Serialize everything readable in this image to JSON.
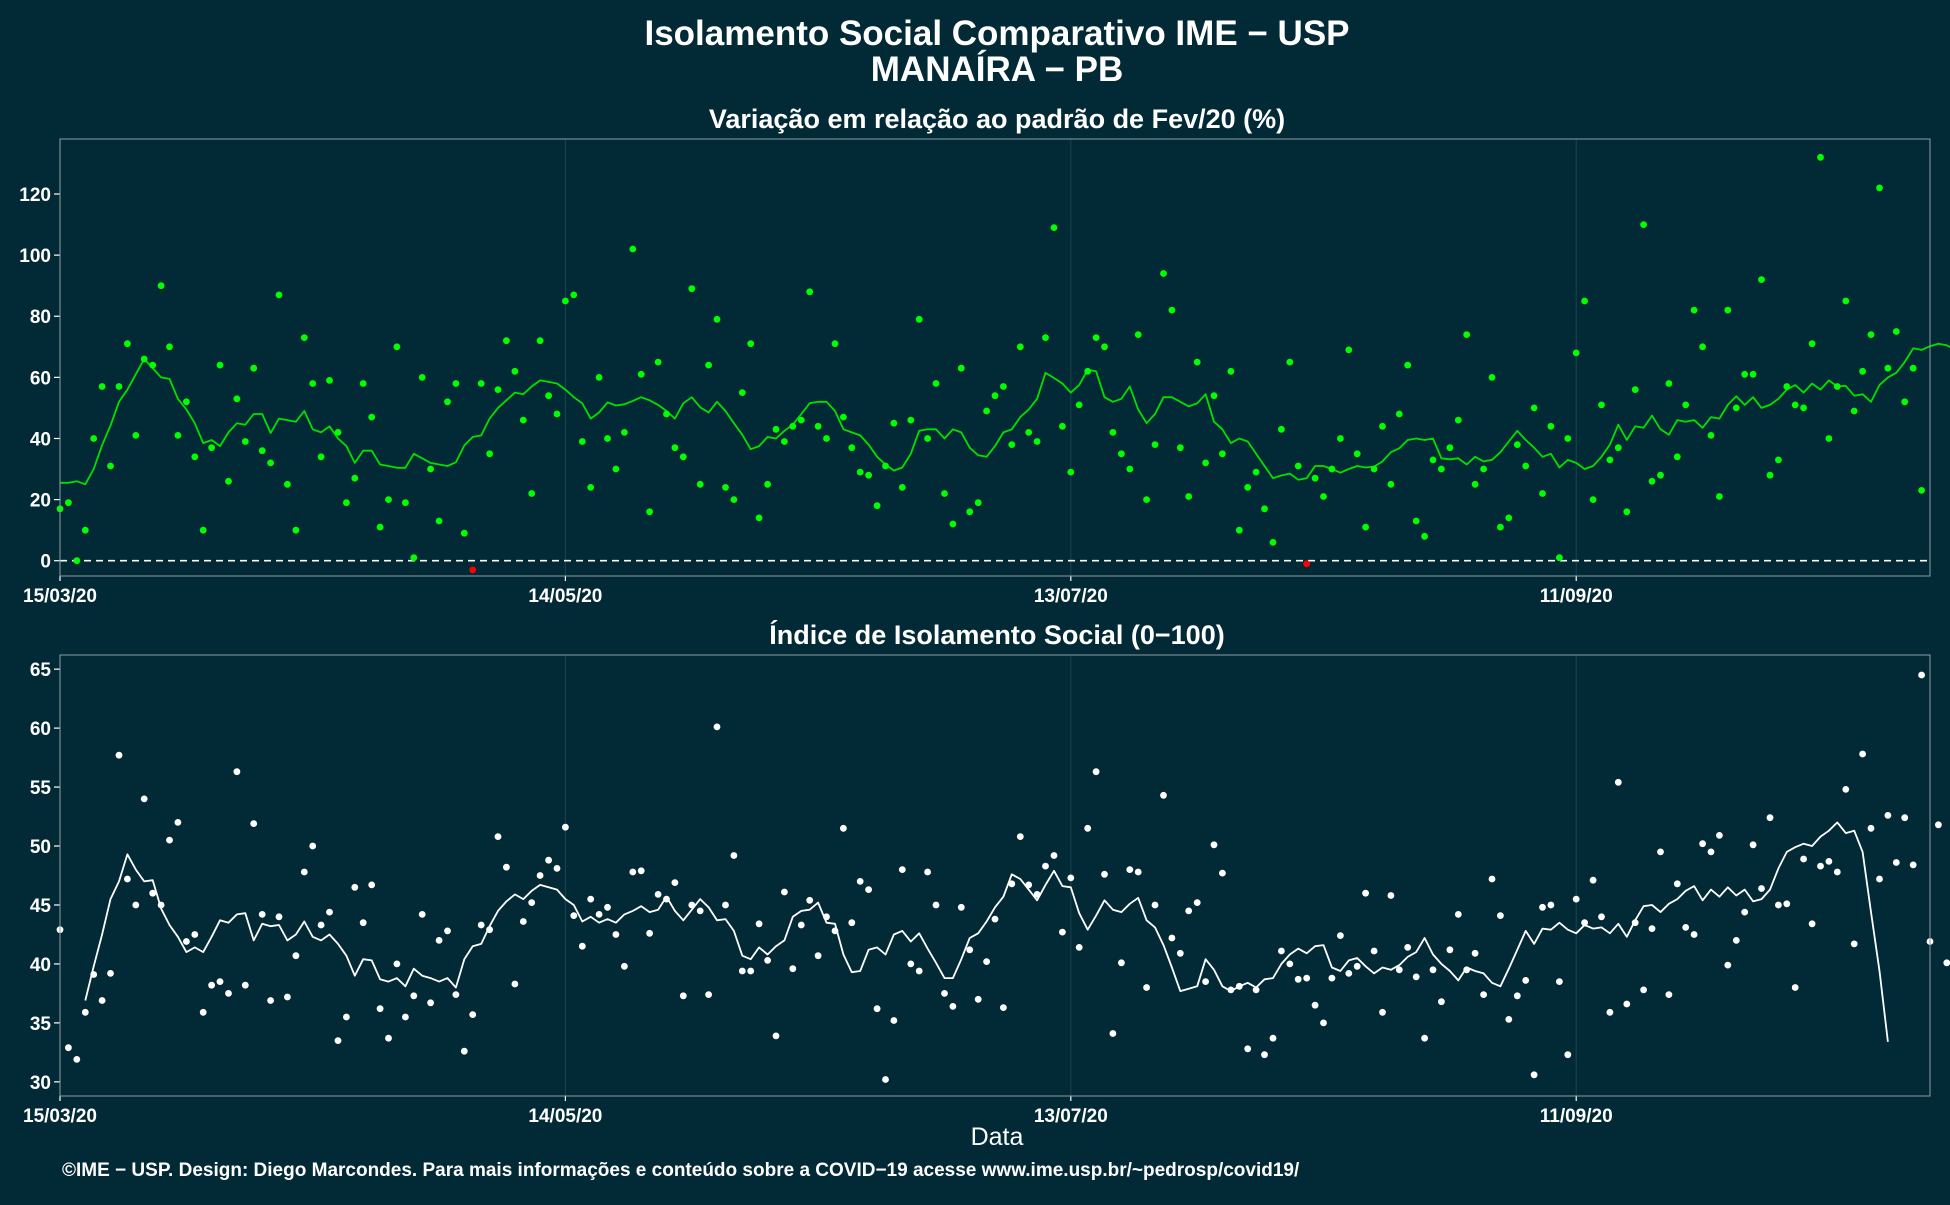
{
  "title_line1": "Isolamento Social Comparativo IME − USP",
  "title_line2": "MANAÍRA − PB",
  "credit": "©IME − USP. Design: Diego Marcondes. Para mais informações e conteúdo sobre a COVID−19 acesse www.ime.usp.br/~pedrosp/covid19/",
  "colors": {
    "background": "#022a36",
    "panel_border": "#8e9ca1",
    "grid": "#16404c",
    "positive_points": "#00ff00",
    "negative_points": "#ff0000",
    "variation_line": "#00e000",
    "index_points": "#ffffff",
    "index_line": "#ffffff"
  },
  "chart_data": [
    {
      "type": "scatter",
      "title": "Variação em relação ao padrão de Fev/20 (%)",
      "xlabel": "",
      "ylabel": "",
      "x_start": "2020-03-15",
      "x_end": "2020-10-23",
      "x_ticks": [
        "15/03/20",
        "14/05/20",
        "13/07/20",
        "11/09/20"
      ],
      "y_ticks": [
        0,
        20,
        40,
        60,
        80,
        100,
        120
      ],
      "ylim": [
        -5,
        138
      ],
      "reference_line": 0,
      "grid": true,
      "legend": "none",
      "points": [
        17,
        19,
        0,
        10,
        40,
        57,
        31,
        57,
        71,
        41,
        66,
        64,
        90,
        70,
        41,
        52,
        34,
        10,
        37,
        64,
        26,
        53,
        39,
        63,
        36,
        32,
        87,
        25,
        10,
        73,
        58,
        34,
        59,
        42,
        19,
        27,
        58,
        47,
        11,
        20,
        70,
        19,
        1,
        60,
        30,
        13,
        52,
        58,
        9,
        -3,
        58,
        35,
        56,
        72,
        62,
        46,
        22,
        72,
        54,
        48,
        85,
        87,
        39,
        24,
        60,
        40,
        30,
        42,
        102,
        61,
        16,
        65,
        48,
        37,
        34,
        89,
        25,
        64,
        79,
        24,
        20,
        55,
        71,
        14,
        25,
        43,
        39,
        44,
        46,
        88,
        44,
        40,
        71,
        47,
        37,
        29,
        28,
        18,
        31,
        45,
        24,
        46,
        79,
        40,
        58,
        22,
        12,
        63,
        16,
        19,
        49,
        54,
        57,
        38,
        70,
        42,
        39,
        73,
        109,
        44,
        29,
        51,
        62,
        73,
        70,
        42,
        35,
        30,
        74,
        20,
        38,
        94,
        82,
        37,
        21,
        65,
        32,
        54,
        35,
        62,
        10,
        24,
        29,
        17,
        6,
        43,
        65,
        31,
        -1,
        27,
        21,
        30,
        40,
        69,
        35,
        11,
        30,
        44,
        25,
        48,
        64,
        13,
        8,
        33,
        30,
        37,
        46,
        74,
        25,
        30,
        60,
        11,
        14,
        38,
        31,
        50,
        22,
        44,
        1,
        40,
        68,
        85,
        20,
        51,
        33,
        37,
        16,
        56,
        110,
        26,
        28,
        58,
        34,
        51,
        82,
        70,
        41,
        21,
        82,
        50,
        61,
        61,
        92,
        28,
        33,
        57,
        51,
        50,
        71,
        132,
        40,
        57,
        85,
        49,
        62,
        74,
        122,
        63,
        75,
        52,
        63,
        23
      ],
      "moving_average": [
        25.5,
        25.5,
        26,
        25,
        30,
        37.8,
        44.2,
        52,
        56,
        61,
        66,
        63,
        60,
        59.5,
        53,
        49.5,
        45,
        38.5,
        39.5,
        37.5,
        42,
        45,
        44.5,
        48,
        48,
        41.8,
        46.5,
        46,
        45.5,
        49,
        43,
        42,
        44,
        40,
        37.5,
        32,
        36,
        36,
        31.5,
        31,
        30.4,
        30.4,
        35,
        33.5,
        32,
        31.5,
        31,
        32.2,
        37.7,
        40.5,
        41,
        46.5,
        50,
        52.5,
        55,
        54.5,
        57,
        59,
        58.5,
        58,
        56,
        53.5,
        51.5,
        46.5,
        48.5,
        51.8,
        50.8,
        51.2,
        52.3,
        53.5,
        52.5,
        51,
        49,
        46.5,
        51.5,
        53.5,
        50.2,
        48.5,
        52,
        49,
        45,
        41.2,
        36.5,
        37.5,
        40.5,
        40,
        42.5,
        44.5,
        48,
        51.5,
        52,
        52,
        49,
        43,
        42,
        41,
        38,
        34,
        31.5,
        29.5,
        30.5,
        35,
        42.5,
        43,
        43,
        40,
        43,
        42,
        37,
        34.5,
        34,
        37.5,
        42,
        43,
        47,
        49.5,
        53,
        61.5,
        59.8,
        58,
        55,
        57.5,
        62.5,
        62,
        53.5,
        52,
        53,
        57,
        49.5,
        45,
        48,
        53.5,
        53.5,
        52,
        50.5,
        51.5,
        54.5,
        45.5,
        43,
        38.5,
        40,
        39,
        35,
        31,
        27,
        27.9,
        28.5,
        26.5,
        27,
        31,
        31,
        30,
        28.8,
        30,
        31,
        30.5,
        30.8,
        32.5,
        35.5,
        36.8,
        39.5,
        40,
        39.5,
        40,
        33.5,
        33.2,
        33.5,
        31.5,
        34,
        32.5,
        33,
        35.5,
        39,
        42.5,
        39.5,
        37,
        34,
        35,
        30.5,
        33,
        32,
        30,
        31,
        34,
        38,
        44.5,
        39.5,
        44,
        43.5,
        47.5,
        43,
        41.2,
        46,
        45.5,
        46,
        43.5,
        47,
        46.5,
        51,
        53.8,
        51,
        53.5,
        50,
        51,
        53,
        56,
        57.5,
        55,
        58,
        56,
        59,
        57,
        57.2,
        54,
        54.5,
        52,
        57.5,
        60,
        61.5,
        65,
        69.5,
        69,
        70.2,
        71,
        70.5,
        69,
        72.5,
        75,
        70,
        72,
        67
      ]
    },
    {
      "type": "scatter",
      "title": "Índice de Isolamento Social (0−100)",
      "xlabel": "Data",
      "ylabel": "",
      "x_start": "2020-03-15",
      "x_end": "2020-10-23",
      "x_ticks": [
        "15/03/20",
        "14/05/20",
        "13/07/20",
        "11/09/20"
      ],
      "y_ticks": [
        30,
        35,
        40,
        45,
        50,
        55,
        60,
        65
      ],
      "ylim": [
        28.8,
        66.2
      ],
      "grid": true,
      "legend": "none",
      "points": [
        42.9,
        32.9,
        31.9,
        35.9,
        39.1,
        36.9,
        39.2,
        57.7,
        47.2,
        45,
        54,
        46,
        45,
        50.5,
        52,
        41.9,
        42.5,
        35.9,
        38.2,
        38.5,
        37.5,
        56.3,
        38.2,
        51.9,
        44.2,
        36.9,
        44,
        37.2,
        40.7,
        47.8,
        50,
        43.3,
        44.4,
        33.5,
        35.5,
        46.5,
        43.5,
        46.7,
        36.2,
        33.7,
        40,
        35.5,
        37.3,
        44.2,
        36.7,
        42,
        42.8,
        37.4,
        32.6,
        35.7,
        43.3,
        42.9,
        50.8,
        48.2,
        38.3,
        43.6,
        45.2,
        47.5,
        48.8,
        48.1,
        51.6,
        44.1,
        41.5,
        45.5,
        44.2,
        44.8,
        42.5,
        39.8,
        47.8,
        47.9,
        42.6,
        45.9,
        45.5,
        46.9,
        37.3,
        45,
        44.5,
        37.4,
        60.1,
        45,
        49.2,
        39.4,
        39.4,
        43.4,
        40.3,
        33.9,
        46.1,
        39.6,
        43.3,
        45.4,
        40.7,
        44,
        42.8,
        51.5,
        43.5,
        47,
        46.3,
        36.2,
        30.2,
        35.2,
        48,
        40,
        39.4,
        47.8,
        45,
        37.5,
        36.4,
        44.8,
        41.2,
        37,
        40.2,
        43.8,
        36.3,
        46.8,
        50.8,
        46.7,
        45.9,
        48.3,
        49.2,
        42.7,
        47.3,
        41.4,
        51.5,
        56.3,
        47.6,
        34.1,
        40.1,
        48,
        47.8,
        38,
        45,
        54.3,
        42.2,
        40.9,
        44.5,
        45.2,
        38.5,
        50.1,
        47.7,
        37.8,
        38.1,
        32.8,
        37.8,
        32.3,
        33.7,
        41.1,
        40,
        38.7,
        38.8,
        36.5,
        35,
        38.8,
        42.4,
        39.2,
        39.8,
        46,
        41.1,
        35.9,
        45.8,
        39.5,
        41.4,
        38.9,
        33.7,
        39.5,
        36.8,
        41.2,
        44.2,
        39.5,
        40.9,
        37.4,
        47.2,
        44.1,
        35.3,
        37.3,
        38.6,
        30.6,
        44.8,
        45,
        38.5,
        32.3,
        45.5,
        43.5,
        47.1,
        44,
        35.9,
        55.4,
        36.6,
        43.5,
        37.8,
        43,
        49.5,
        37.4,
        46.8,
        43.1,
        42.5,
        50.2,
        49.5,
        50.9,
        39.9,
        42,
        44.4,
        50.1,
        46.4,
        52.4,
        45,
        45.1,
        38,
        48.9,
        43.4,
        48.3,
        48.7,
        47.8,
        54.8,
        41.7,
        57.8,
        51.5,
        47.2,
        52.6,
        48.6,
        52.4,
        48.4,
        64.5,
        41.9,
        51.8,
        40.1
      ],
      "moving_average": [
        null,
        null,
        null,
        36.9,
        39.8,
        42.5,
        45.5,
        47,
        49.3,
        48,
        47,
        47.1,
        44.7,
        43.3,
        42.3,
        41,
        41.4,
        41,
        42.3,
        43.7,
        43.5,
        44.2,
        44.3,
        42,
        43.4,
        43.2,
        43.3,
        42,
        42.5,
        43.6,
        42.3,
        42,
        42.5,
        41.7,
        40.7,
        39,
        40.4,
        40.3,
        38.7,
        38.5,
        38.8,
        38.1,
        39.6,
        39,
        38.8,
        38.5,
        38.8,
        38,
        40.4,
        41.5,
        41.7,
        43.2,
        44.5,
        45.3,
        45.9,
        45.5,
        46.2,
        46.7,
        46.5,
        46.3,
        45.5,
        45,
        43.6,
        44,
        43.5,
        43.8,
        43.5,
        44.2,
        44.5,
        44.9,
        44.4,
        44.6,
        45.7,
        44.5,
        43.7,
        44.6,
        45.5,
        44.8,
        43.7,
        43.8,
        42.8,
        40.7,
        40.4,
        41.4,
        40.8,
        41.5,
        42,
        44,
        44.5,
        44.6,
        45.2,
        43.5,
        43.4,
        40.8,
        39.3,
        39.4,
        41.2,
        41.4,
        40.8,
        42.5,
        42.8,
        41.9,
        42.6,
        41.3,
        40.1,
        38.8,
        38.8,
        40.4,
        42.2,
        42.6,
        43.6,
        44.8,
        45.7,
        47.6,
        47.2,
        46.3,
        45.4,
        46.7,
        47.9,
        46.6,
        46.5,
        44.3,
        42.9,
        44.1,
        45.4,
        44.6,
        44.4,
        45.1,
        45.6,
        43.7,
        43.1,
        41.6,
        39.7,
        37.7,
        37.9,
        38.1,
        40.4,
        39.5,
        38.1,
        37.7,
        38.1,
        38.4,
        38,
        38.7,
        38.8,
        40,
        40.8,
        41.3,
        40.9,
        41.5,
        41.6,
        39.7,
        39.4,
        40.3,
        40.5,
        39.8,
        39.2,
        39.7,
        39.5,
        39.9,
        40.6,
        41,
        42.2,
        40.8,
        40,
        39.4,
        38.6,
        39.7,
        39.4,
        39.2,
        38.4,
        38.1,
        39.6,
        41.2,
        42.8,
        41.7,
        43,
        42.9,
        43.5,
        42.9,
        42.6,
        43.3,
        43,
        43.1,
        42.6,
        43.4,
        42.3,
        43.7,
        44.9,
        45,
        44.4,
        45.1,
        45.5,
        46.2,
        46.6,
        45.4,
        46.3,
        45.7,
        46.5,
        45.8,
        46.3,
        45.3,
        45.5,
        46.3,
        48.1,
        49.5,
        49.9,
        50.2,
        50,
        50.8,
        51.3,
        52,
        51.1,
        51.3,
        49.5,
        44.4,
        39.4,
        33.4
      ]
    }
  ]
}
